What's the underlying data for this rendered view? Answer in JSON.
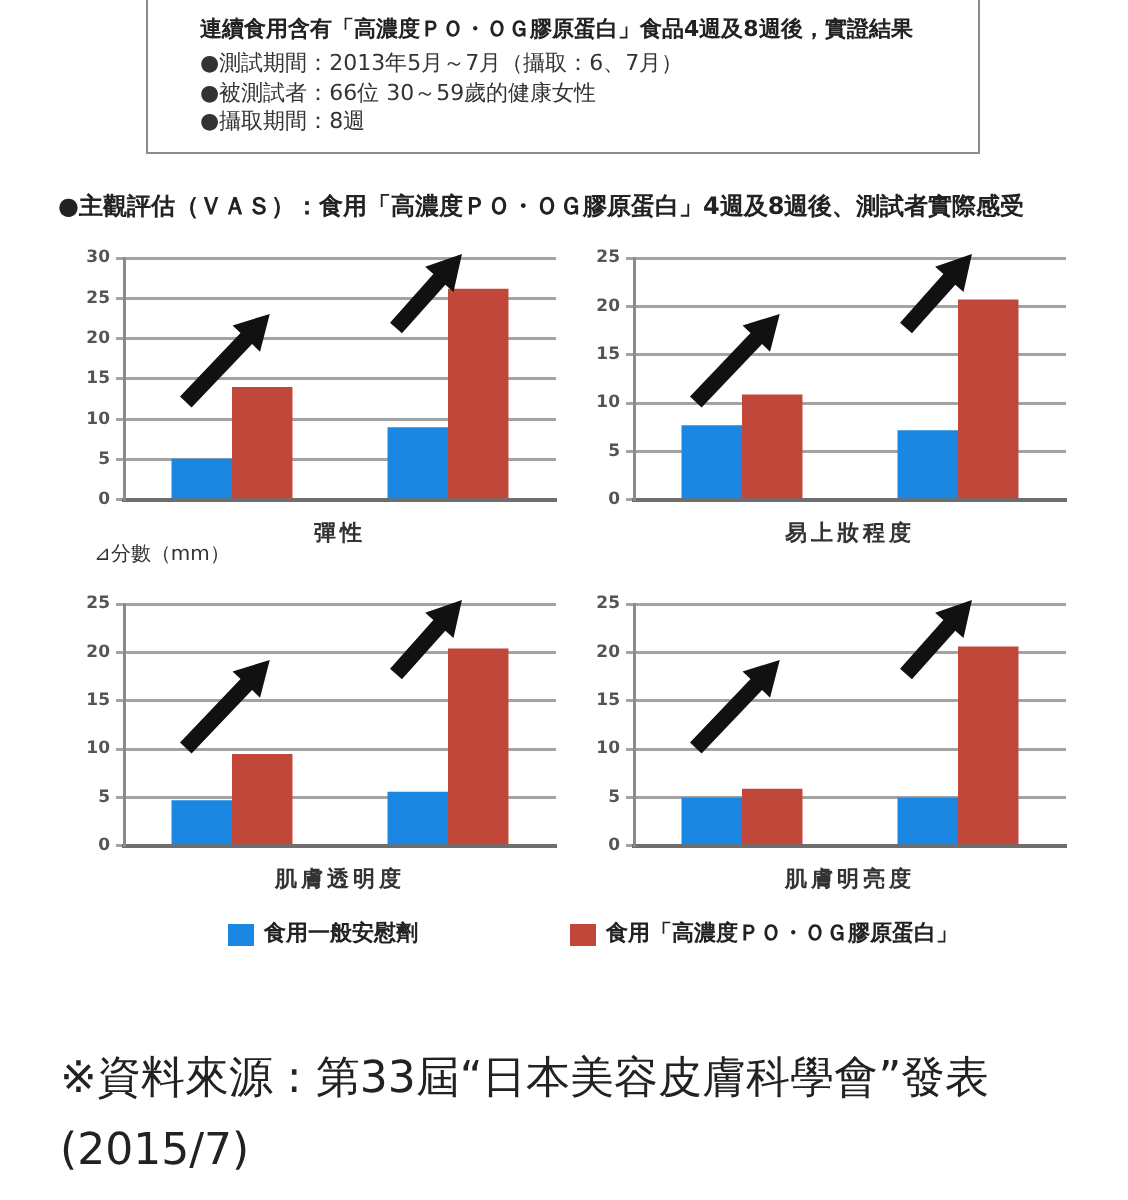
{
  "chart_data": [
    {
      "type": "bar",
      "title": "連續食用含有「高濃度ＰＯ・ＯＧ膠原蛋白」食品4週及8週後，實證結果",
      "subtitle": "●主觀評估（ＶＡＳ）：食用「高濃度ＰＯ・ＯＧ膠原蛋白」4週及8週後、測試者實際感受",
      "annotations": [
        "●測試期間：2013年5月～7月（攝取：6、7月）",
        "●被測試者：66位 30～59歲的健康女性",
        "●攝取期間：8週"
      ],
      "xlabel": "彈性",
      "categories": [
        null,
        null
      ],
      "series": [
        {
          "color": "#1a87e3",
          "values": [
            5.1,
            9.0
          ]
        },
        {
          "color": "#c2473b",
          "values": [
            14.0,
            26.2
          ]
        }
      ],
      "ylim": [
        0,
        30
      ],
      "yticks": [
        0,
        5,
        10,
        15,
        20,
        25,
        30
      ],
      "grid": "y",
      "tick_labels": "y"
    },
    {
      "type": "bar",
      "xlabel": "易上妝程度",
      "categories": [
        null,
        null
      ],
      "series": [
        {
          "color": "#1a87e3",
          "values": [
            7.7,
            7.2
          ]
        },
        {
          "color": "#c2473b",
          "values": [
            10.9,
            20.7
          ]
        }
      ],
      "ylim": [
        0,
        25
      ],
      "yticks": [
        0,
        5,
        10,
        15,
        20,
        25
      ],
      "grid": "y",
      "tick_labels": "y"
    },
    {
      "type": "bar",
      "xlabel": "肌膚透明度",
      "ylabel": "⊿分數（mm）",
      "categories": [
        null,
        null
      ],
      "series": [
        {
          "color": "#1a87e3",
          "values": [
            4.7,
            5.6
          ]
        },
        {
          "color": "#c2473b",
          "values": [
            9.5,
            20.4
          ]
        }
      ],
      "ylim": [
        0,
        25
      ],
      "yticks": [
        0,
        5,
        10,
        15,
        20,
        25
      ],
      "grid": "y",
      "tick_labels": "y"
    },
    {
      "type": "bar",
      "xlabel": "肌膚明亮度",
      "annotations": [
        "※資料來源 : 第33屆“日本美容皮膚科學會”發表(2015/7)"
      ],
      "categories": [
        null,
        null
      ],
      "series": [
        {
          "name": "食用一般安慰劑",
          "color": "#1a87e3",
          "values": [
            5,
            5
          ]
        },
        {
          "name": "食用「高濃度ＰＯ・ＯＧ膠原蛋白」",
          "color": "#c2473b",
          "values": [
            5.9,
            20.6
          ]
        }
      ],
      "ylim": [
        0,
        25
      ],
      "yticks": [
        0,
        5,
        10,
        15,
        20,
        25
      ],
      "grid": "y",
      "tick_labels": "y",
      "legend": "bottom"
    }
  ]
}
